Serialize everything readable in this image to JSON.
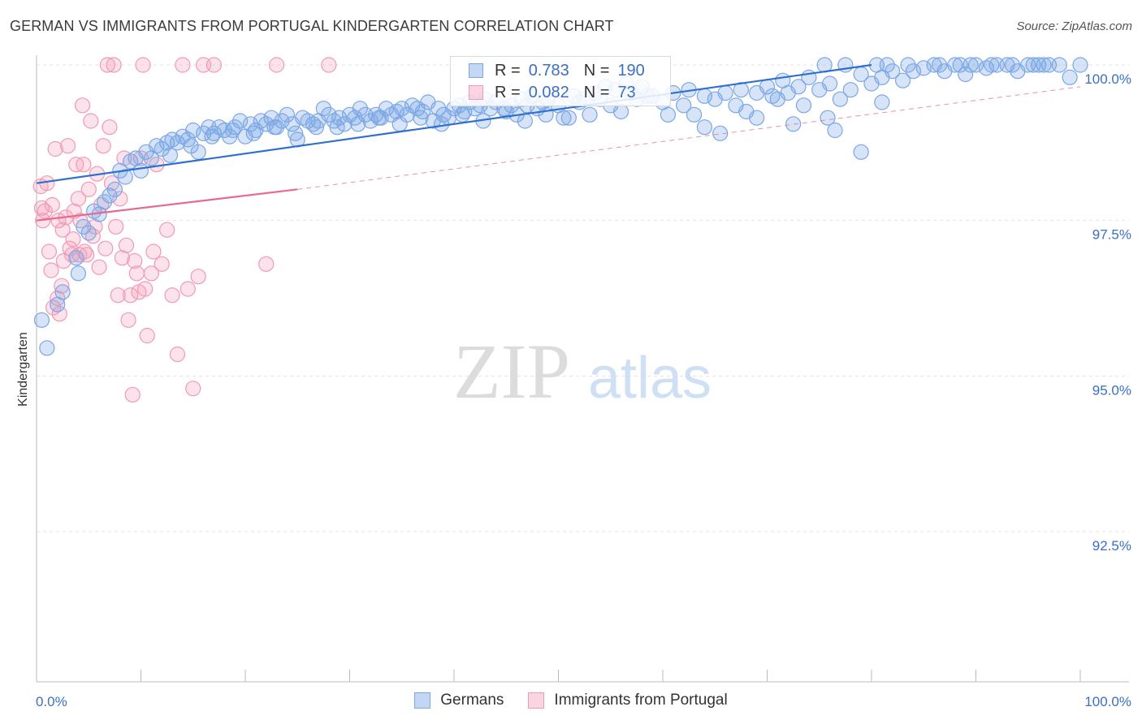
{
  "header": {
    "title": "GERMAN VS IMMIGRANTS FROM PORTUGAL KINDERGARTEN CORRELATION CHART",
    "source": "Source: ZipAtlas.com"
  },
  "watermark": {
    "zip": "ZIP",
    "atlas": "atlas"
  },
  "legend": {
    "germans": {
      "r_label": "R =",
      "r_value": "0.783",
      "n_label": "N =",
      "n_value": "190"
    },
    "portugal": {
      "r_label": "R =",
      "r_value": "0.082",
      "n_label": "N =",
      "n_value": "73"
    }
  },
  "bottom_legend": {
    "germans": "Germans",
    "portugal": "Immigrants from Portugal"
  },
  "colors": {
    "blue_fill": "rgba(122,167,230,0.30)",
    "blue_stroke": "#7aa7e6",
    "blue_line": "#2f6fce",
    "pink_fill": "rgba(244,160,186,0.30)",
    "pink_stroke": "#f09ab4",
    "pink_line": "#e46a92",
    "axis_label": "#3a6fc4"
  },
  "chart_data": {
    "type": "scatter",
    "title": "GERMAN VS IMMIGRANTS FROM PORTUGAL KINDERGARTEN CORRELATION CHART",
    "xlabel": "",
    "ylabel": "Kindergarten",
    "xlim": [
      0,
      100
    ],
    "ylim": [
      90.0,
      100.5
    ],
    "x_tick_labels": [
      "0.0%",
      "100.0%"
    ],
    "y_ticks": [
      {
        "value": 100.0,
        "label": "100.0%"
      },
      {
        "value": 97.5,
        "label": "97.5%"
      },
      {
        "value": 95.0,
        "label": "95.0%"
      },
      {
        "value": 92.5,
        "label": "92.5%"
      }
    ],
    "series": [
      {
        "name": "Germans",
        "color": "#7aa7e6",
        "trend": {
          "x": [
            0,
            80
          ],
          "y": [
            98.1,
            100.0
          ]
        },
        "points": [
          [
            0.5,
            95.9
          ],
          [
            1.0,
            95.45
          ],
          [
            2.0,
            96.15
          ],
          [
            2.5,
            96.35
          ],
          [
            4.0,
            96.65
          ],
          [
            3.8,
            96.9
          ],
          [
            4.5,
            97.4
          ],
          [
            5.0,
            97.3
          ],
          [
            5.5,
            97.65
          ],
          [
            6.0,
            97.6
          ],
          [
            6.5,
            97.8
          ],
          [
            7.0,
            97.9
          ],
          [
            7.5,
            98.0
          ],
          [
            8.0,
            98.3
          ],
          [
            8.5,
            98.2
          ],
          [
            9.0,
            98.45
          ],
          [
            9.5,
            98.5
          ],
          [
            10.0,
            98.3
          ],
          [
            10.5,
            98.6
          ],
          [
            11.0,
            98.5
          ],
          [
            11.5,
            98.7
          ],
          [
            12.0,
            98.65
          ],
          [
            12.5,
            98.75
          ],
          [
            13.0,
            98.8
          ],
          [
            13.5,
            98.75
          ],
          [
            14.0,
            98.85
          ],
          [
            14.5,
            98.8
          ],
          [
            15.0,
            98.95
          ],
          [
            15.5,
            98.6
          ],
          [
            16.0,
            98.9
          ],
          [
            16.5,
            99.0
          ],
          [
            17.0,
            98.9
          ],
          [
            17.5,
            99.0
          ],
          [
            18.0,
            98.95
          ],
          [
            18.5,
            98.85
          ],
          [
            19.0,
            99.0
          ],
          [
            19.5,
            99.1
          ],
          [
            20.0,
            98.85
          ],
          [
            20.5,
            99.05
          ],
          [
            21.0,
            98.95
          ],
          [
            21.5,
            99.1
          ],
          [
            22.0,
            99.05
          ],
          [
            22.5,
            99.15
          ],
          [
            23.0,
            99.0
          ],
          [
            23.5,
            99.1
          ],
          [
            24.0,
            99.2
          ],
          [
            24.5,
            99.05
          ],
          [
            25.0,
            98.8
          ],
          [
            25.5,
            99.15
          ],
          [
            26.0,
            99.1
          ],
          [
            26.5,
            99.05
          ],
          [
            27.0,
            99.1
          ],
          [
            27.5,
            99.3
          ],
          [
            28.0,
            99.2
          ],
          [
            28.5,
            99.1
          ],
          [
            29.0,
            99.15
          ],
          [
            29.5,
            99.05
          ],
          [
            30.0,
            99.2
          ],
          [
            30.5,
            99.15
          ],
          [
            31.0,
            99.3
          ],
          [
            31.5,
            99.2
          ],
          [
            32.0,
            99.1
          ],
          [
            32.5,
            99.2
          ],
          [
            33.0,
            99.15
          ],
          [
            33.5,
            99.3
          ],
          [
            34.0,
            99.2
          ],
          [
            34.5,
            99.25
          ],
          [
            35.0,
            99.3
          ],
          [
            35.5,
            99.2
          ],
          [
            36.0,
            99.35
          ],
          [
            36.5,
            99.3
          ],
          [
            37.0,
            99.25
          ],
          [
            37.5,
            99.4
          ],
          [
            38.0,
            99.1
          ],
          [
            38.5,
            99.3
          ],
          [
            39.0,
            99.2
          ],
          [
            39.5,
            99.15
          ],
          [
            40.0,
            99.3
          ],
          [
            40.5,
            99.35
          ],
          [
            41.0,
            99.25
          ],
          [
            41.5,
            99.4
          ],
          [
            42.0,
            99.3
          ],
          [
            42.5,
            99.35
          ],
          [
            43.0,
            99.45
          ],
          [
            43.5,
            99.3
          ],
          [
            44.0,
            99.4
          ],
          [
            45.0,
            99.25
          ],
          [
            45.5,
            99.35
          ],
          [
            46.0,
            99.2
          ],
          [
            46.5,
            99.45
          ],
          [
            47.0,
            99.35
          ],
          [
            47.5,
            99.5
          ],
          [
            48.0,
            99.3
          ],
          [
            48.5,
            99.4
          ],
          [
            49.0,
            99.45
          ],
          [
            50.0,
            99.35
          ],
          [
            51.0,
            99.15
          ],
          [
            51.5,
            99.5
          ],
          [
            52.0,
            99.4
          ],
          [
            53.0,
            99.2
          ],
          [
            53.5,
            99.55
          ],
          [
            54.0,
            99.45
          ],
          [
            55.0,
            99.35
          ],
          [
            55.5,
            99.6
          ],
          [
            56.0,
            99.25
          ],
          [
            57.0,
            99.55
          ],
          [
            57.5,
            99.45
          ],
          [
            58.0,
            99.65
          ],
          [
            59.0,
            99.5
          ],
          [
            60.0,
            99.4
          ],
          [
            61.0,
            99.55
          ],
          [
            62.0,
            99.35
          ],
          [
            62.5,
            99.6
          ],
          [
            63.0,
            99.2
          ],
          [
            64.0,
            99.5
          ],
          [
            65.0,
            99.45
          ],
          [
            66.0,
            99.55
          ],
          [
            67.0,
            99.35
          ],
          [
            67.5,
            99.6
          ],
          [
            68.0,
            99.25
          ],
          [
            69.0,
            99.55
          ],
          [
            70.0,
            99.65
          ],
          [
            71.0,
            99.45
          ],
          [
            71.5,
            99.75
          ],
          [
            72.0,
            99.55
          ],
          [
            73.0,
            99.65
          ],
          [
            73.5,
            99.35
          ],
          [
            74.0,
            99.8
          ],
          [
            75.0,
            99.6
          ],
          [
            76.0,
            99.7
          ],
          [
            77.0,
            99.45
          ],
          [
            78.0,
            99.6
          ],
          [
            79.0,
            99.85
          ],
          [
            80.0,
            99.7
          ],
          [
            81.0,
            99.8
          ],
          [
            82.0,
            99.9
          ],
          [
            83.0,
            99.75
          ],
          [
            84.0,
            99.9
          ],
          [
            85.0,
            99.95
          ],
          [
            86.0,
            100.0
          ],
          [
            87.0,
            99.9
          ],
          [
            88.0,
            100.0
          ],
          [
            89.0,
            99.85
          ],
          [
            90.0,
            100.0
          ],
          [
            91.0,
            99.95
          ],
          [
            92.0,
            100.0
          ],
          [
            93.0,
            100.0
          ],
          [
            94.0,
            99.9
          ],
          [
            95.0,
            100.0
          ],
          [
            96.0,
            100.0
          ],
          [
            97.0,
            100.0
          ],
          [
            98.0,
            100.0
          ],
          [
            99.0,
            99.8
          ],
          [
            100.0,
            100.0
          ],
          [
            75.5,
            100.0
          ],
          [
            77.5,
            100.0
          ],
          [
            80.5,
            100.0
          ],
          [
            81.5,
            100.0
          ],
          [
            83.5,
            100.0
          ],
          [
            86.5,
            100.0
          ],
          [
            88.5,
            100.0
          ],
          [
            89.5,
            100.0
          ],
          [
            91.5,
            100.0
          ],
          [
            93.5,
            100.0
          ],
          [
            95.5,
            100.0
          ],
          [
            96.5,
            100.0
          ],
          [
            72.5,
            99.05
          ],
          [
            75.8,
            99.15
          ],
          [
            76.5,
            98.95
          ],
          [
            79.0,
            98.6
          ],
          [
            81.0,
            99.4
          ],
          [
            64.0,
            99.0
          ],
          [
            65.5,
            98.9
          ],
          [
            70.5,
            99.5
          ],
          [
            69.0,
            99.15
          ],
          [
            60.5,
            99.2
          ],
          [
            58.5,
            99.5
          ],
          [
            56.5,
            99.7
          ],
          [
            54.5,
            99.65
          ],
          [
            52.5,
            99.45
          ],
          [
            50.5,
            99.15
          ],
          [
            48.8,
            99.2
          ],
          [
            46.8,
            99.1
          ],
          [
            44.8,
            99.3
          ],
          [
            42.8,
            99.1
          ],
          [
            40.8,
            99.2
          ],
          [
            38.8,
            99.05
          ],
          [
            36.8,
            99.15
          ],
          [
            34.8,
            99.05
          ],
          [
            32.8,
            99.15
          ],
          [
            30.8,
            99.05
          ],
          [
            28.8,
            99.0
          ],
          [
            26.8,
            99.0
          ],
          [
            24.8,
            98.9
          ],
          [
            22.8,
            99.0
          ],
          [
            20.8,
            98.9
          ],
          [
            18.8,
            98.95
          ],
          [
            16.8,
            98.85
          ],
          [
            14.8,
            98.7
          ],
          [
            12.8,
            98.55
          ]
        ]
      },
      {
        "name": "Immigrants from Portugal",
        "color": "#f09ab4",
        "trend": {
          "x": [
            0,
            25
          ],
          "y": [
            97.5,
            98.0
          ]
        },
        "trend_ext": {
          "x": [
            25,
            100
          ],
          "y": [
            98.0,
            99.65
          ]
        },
        "points": [
          [
            0.4,
            98.05
          ],
          [
            0.5,
            97.7
          ],
          [
            0.6,
            97.5
          ],
          [
            0.8,
            97.65
          ],
          [
            1.0,
            98.1
          ],
          [
            1.2,
            97.0
          ],
          [
            1.4,
            96.7
          ],
          [
            1.5,
            97.75
          ],
          [
            1.6,
            96.1
          ],
          [
            1.8,
            98.65
          ],
          [
            2.0,
            96.25
          ],
          [
            2.1,
            97.5
          ],
          [
            2.2,
            96.0
          ],
          [
            2.4,
            96.45
          ],
          [
            2.5,
            97.35
          ],
          [
            2.6,
            96.85
          ],
          [
            2.8,
            97.55
          ],
          [
            3.0,
            98.7
          ],
          [
            3.2,
            97.05
          ],
          [
            3.4,
            96.95
          ],
          [
            3.5,
            97.2
          ],
          [
            3.6,
            97.65
          ],
          [
            3.8,
            98.4
          ],
          [
            4.0,
            97.85
          ],
          [
            4.1,
            96.95
          ],
          [
            4.2,
            97.5
          ],
          [
            4.4,
            99.35
          ],
          [
            4.5,
            98.4
          ],
          [
            4.6,
            97.0
          ],
          [
            4.8,
            96.95
          ],
          [
            5.0,
            98.0
          ],
          [
            5.2,
            99.1
          ],
          [
            5.4,
            97.25
          ],
          [
            5.6,
            97.4
          ],
          [
            5.8,
            98.25
          ],
          [
            6.0,
            96.75
          ],
          [
            6.2,
            97.75
          ],
          [
            6.4,
            98.7
          ],
          [
            6.6,
            97.05
          ],
          [
            6.8,
            100.0
          ],
          [
            7.0,
            99.0
          ],
          [
            7.2,
            98.1
          ],
          [
            7.4,
            100.0
          ],
          [
            7.6,
            97.4
          ],
          [
            7.8,
            96.3
          ],
          [
            8.0,
            97.85
          ],
          [
            8.2,
            96.9
          ],
          [
            8.4,
            98.5
          ],
          [
            8.6,
            97.1
          ],
          [
            8.8,
            95.9
          ],
          [
            9.0,
            96.3
          ],
          [
            9.2,
            94.7
          ],
          [
            9.4,
            96.85
          ],
          [
            9.6,
            96.65
          ],
          [
            9.8,
            96.35
          ],
          [
            10.0,
            98.5
          ],
          [
            10.2,
            100.0
          ],
          [
            10.4,
            96.4
          ],
          [
            10.6,
            95.65
          ],
          [
            11.0,
            96.65
          ],
          [
            11.2,
            97.0
          ],
          [
            11.5,
            98.4
          ],
          [
            12.0,
            96.8
          ],
          [
            12.5,
            97.35
          ],
          [
            13.0,
            96.3
          ],
          [
            13.5,
            95.35
          ],
          [
            14.0,
            100.0
          ],
          [
            14.5,
            96.4
          ],
          [
            15.0,
            94.8
          ],
          [
            15.5,
            96.6
          ],
          [
            16.0,
            100.0
          ],
          [
            17.0,
            100.0
          ],
          [
            22.0,
            96.8
          ],
          [
            23.0,
            100.0
          ],
          [
            28.0,
            100.0
          ]
        ]
      }
    ]
  }
}
